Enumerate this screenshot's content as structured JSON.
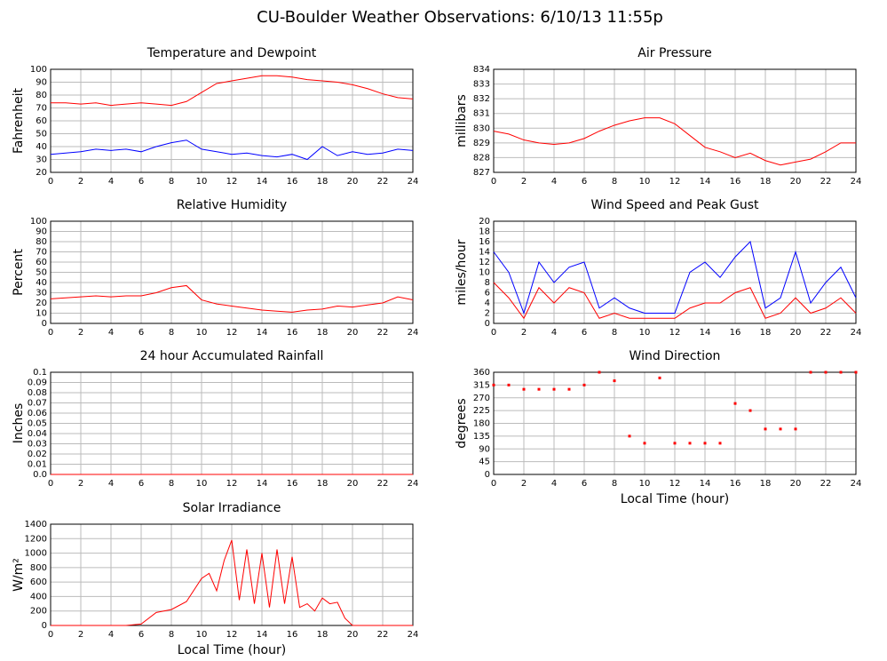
{
  "title": "CU-Boulder Weather Observations: 6/10/13 11:55p",
  "chart_data": [
    {
      "type": "line",
      "title": "Temperature and Dewpoint",
      "ylabel": "Fahrenheit",
      "x": [
        0,
        1,
        2,
        3,
        4,
        5,
        6,
        7,
        8,
        9,
        10,
        11,
        12,
        13,
        14,
        15,
        16,
        17,
        18,
        19,
        20,
        21,
        22,
        23,
        24
      ],
      "series": [
        {
          "color": "#ff0000",
          "values": [
            74,
            74,
            73,
            74,
            72,
            73,
            74,
            73,
            72,
            75,
            82,
            89,
            91,
            93,
            95,
            95,
            94,
            92,
            91,
            90,
            88,
            85,
            81,
            78,
            77
          ]
        },
        {
          "color": "#0000ff",
          "values": [
            34,
            35,
            36,
            38,
            37,
            38,
            36,
            40,
            43,
            45,
            38,
            36,
            34,
            35,
            33,
            32,
            34,
            30,
            40,
            33,
            36,
            34,
            35,
            38,
            37
          ]
        }
      ],
      "xlim": [
        0,
        24
      ],
      "xticks": [
        0,
        2,
        4,
        6,
        8,
        10,
        12,
        14,
        16,
        18,
        20,
        22,
        24
      ],
      "ylim": [
        20,
        100
      ],
      "yticks": [
        20,
        30,
        40,
        50,
        60,
        70,
        80,
        90,
        100
      ],
      "grid": true
    },
    {
      "type": "line",
      "title": "Air Pressure",
      "ylabel": "millibars",
      "x": [
        0,
        1,
        2,
        3,
        4,
        5,
        6,
        7,
        8,
        9,
        10,
        11,
        12,
        13,
        14,
        15,
        16,
        17,
        18,
        19,
        20,
        21,
        22,
        23,
        24
      ],
      "series": [
        {
          "color": "#ff0000",
          "values": [
            829.8,
            829.6,
            829.2,
            829.0,
            828.9,
            829.0,
            829.3,
            829.8,
            830.2,
            830.5,
            830.7,
            830.7,
            830.3,
            829.5,
            828.7,
            828.4,
            828.0,
            828.3,
            827.8,
            827.5,
            827.7,
            827.9,
            828.4,
            829.0,
            829.0
          ]
        }
      ],
      "xlim": [
        0,
        24
      ],
      "xticks": [
        0,
        2,
        4,
        6,
        8,
        10,
        12,
        14,
        16,
        18,
        20,
        22,
        24
      ],
      "ylim": [
        827,
        834
      ],
      "yticks": [
        827,
        828,
        829,
        830,
        831,
        832,
        833,
        834
      ],
      "grid": true
    },
    {
      "type": "line",
      "title": "Relative Humidity",
      "ylabel": "Percent",
      "x": [
        0,
        1,
        2,
        3,
        4,
        5,
        6,
        7,
        8,
        9,
        10,
        11,
        12,
        13,
        14,
        15,
        16,
        17,
        18,
        19,
        20,
        21,
        22,
        23,
        24
      ],
      "series": [
        {
          "color": "#ff0000",
          "values": [
            24,
            25,
            26,
            27,
            26,
            27,
            27,
            30,
            35,
            37,
            23,
            19,
            17,
            15,
            13,
            12,
            11,
            13,
            14,
            17,
            16,
            18,
            20,
            26,
            23
          ]
        }
      ],
      "xlim": [
        0,
        24
      ],
      "xticks": [
        0,
        2,
        4,
        6,
        8,
        10,
        12,
        14,
        16,
        18,
        20,
        22,
        24
      ],
      "ylim": [
        0,
        100
      ],
      "yticks": [
        0,
        10,
        20,
        30,
        40,
        50,
        60,
        70,
        80,
        90,
        100
      ],
      "grid": true
    },
    {
      "type": "line",
      "title": "Wind Speed and Peak Gust",
      "ylabel": "miles/hour",
      "x": [
        0,
        1,
        2,
        3,
        4,
        5,
        6,
        7,
        8,
        9,
        10,
        11,
        12,
        13,
        14,
        15,
        16,
        17,
        18,
        19,
        20,
        21,
        22,
        23,
        24
      ],
      "series": [
        {
          "color": "#0000ff",
          "values": [
            14,
            10,
            2,
            12,
            8,
            11,
            12,
            3,
            5,
            3,
            2,
            2,
            2,
            10,
            12,
            9,
            13,
            16,
            3,
            5,
            14,
            4,
            8,
            11,
            5
          ]
        },
        {
          "color": "#ff0000",
          "values": [
            8,
            5,
            1,
            7,
            4,
            7,
            6,
            1,
            2,
            1,
            1,
            1,
            1,
            3,
            4,
            4,
            6,
            7,
            1,
            2,
            5,
            2,
            3,
            5,
            2
          ]
        }
      ],
      "xlim": [
        0,
        24
      ],
      "xticks": [
        0,
        2,
        4,
        6,
        8,
        10,
        12,
        14,
        16,
        18,
        20,
        22,
        24
      ],
      "ylim": [
        0,
        20
      ],
      "yticks": [
        0,
        2,
        4,
        6,
        8,
        10,
        12,
        14,
        16,
        18,
        20
      ],
      "grid": true
    },
    {
      "type": "line",
      "title": "24 hour Accumulated Rainfall",
      "ylabel": "Inches",
      "x": [
        0,
        24
      ],
      "series": [
        {
          "color": "#ff0000",
          "values": [
            0,
            0
          ]
        }
      ],
      "xlim": [
        0,
        24
      ],
      "xticks": [
        0,
        2,
        4,
        6,
        8,
        10,
        12,
        14,
        16,
        18,
        20,
        22,
        24
      ],
      "ylim": [
        0,
        0.1
      ],
      "yticks": [
        {
          "value": 0,
          "label": "0.0"
        },
        0.01,
        0.02,
        0.03,
        0.04,
        0.05,
        0.06,
        0.07,
        0.08,
        0.09,
        0.1
      ],
      "grid": true
    },
    {
      "type": "scatter",
      "title": "Wind Direction",
      "ylabel": "degrees",
      "xlabel": "Local Time (hour)",
      "x": [
        0,
        1,
        2,
        3,
        4,
        5,
        6,
        7,
        8,
        9,
        10,
        11,
        12,
        13,
        14,
        15,
        16,
        17,
        18,
        19,
        20,
        21,
        22,
        23,
        24
      ],
      "series": [
        {
          "color": "#ff0000",
          "values": [
            315,
            315,
            300,
            300,
            300,
            300,
            315,
            360,
            330,
            135,
            110,
            340,
            110,
            110,
            110,
            110,
            250,
            225,
            160,
            160,
            160,
            360,
            360,
            360,
            360
          ]
        }
      ],
      "xlim": [
        0,
        24
      ],
      "xticks": [
        0,
        2,
        4,
        6,
        8,
        10,
        12,
        14,
        16,
        18,
        20,
        22,
        24
      ],
      "ylim": [
        0,
        360
      ],
      "yticks": [
        0,
        45,
        90,
        135,
        180,
        225,
        270,
        315,
        360
      ],
      "grid": true
    },
    {
      "type": "line",
      "title": "Solar Irradiance",
      "ylabel": "W/m²",
      "xlabel": "Local Time (hour)",
      "x": [
        0,
        5,
        6,
        7,
        8,
        9,
        10,
        10.5,
        11,
        11.5,
        12,
        12.5,
        13,
        13.5,
        14,
        14.5,
        15,
        15.5,
        16,
        16.5,
        17,
        17.5,
        18,
        18.5,
        19,
        19.5,
        20,
        24
      ],
      "series": [
        {
          "color": "#ff0000",
          "values": [
            0,
            0,
            20,
            180,
            220,
            330,
            650,
            720,
            480,
            900,
            1180,
            350,
            1050,
            300,
            1000,
            250,
            1050,
            300,
            950,
            250,
            300,
            200,
            380,
            300,
            320,
            100,
            0,
            0
          ]
        }
      ],
      "xlim": [
        0,
        24
      ],
      "xticks": [
        0,
        2,
        4,
        6,
        8,
        10,
        12,
        14,
        16,
        18,
        20,
        22,
        24
      ],
      "ylim": [
        0,
        1400
      ],
      "yticks": [
        0,
        200,
        400,
        600,
        800,
        1000,
        1200,
        1400
      ],
      "grid": true
    }
  ]
}
